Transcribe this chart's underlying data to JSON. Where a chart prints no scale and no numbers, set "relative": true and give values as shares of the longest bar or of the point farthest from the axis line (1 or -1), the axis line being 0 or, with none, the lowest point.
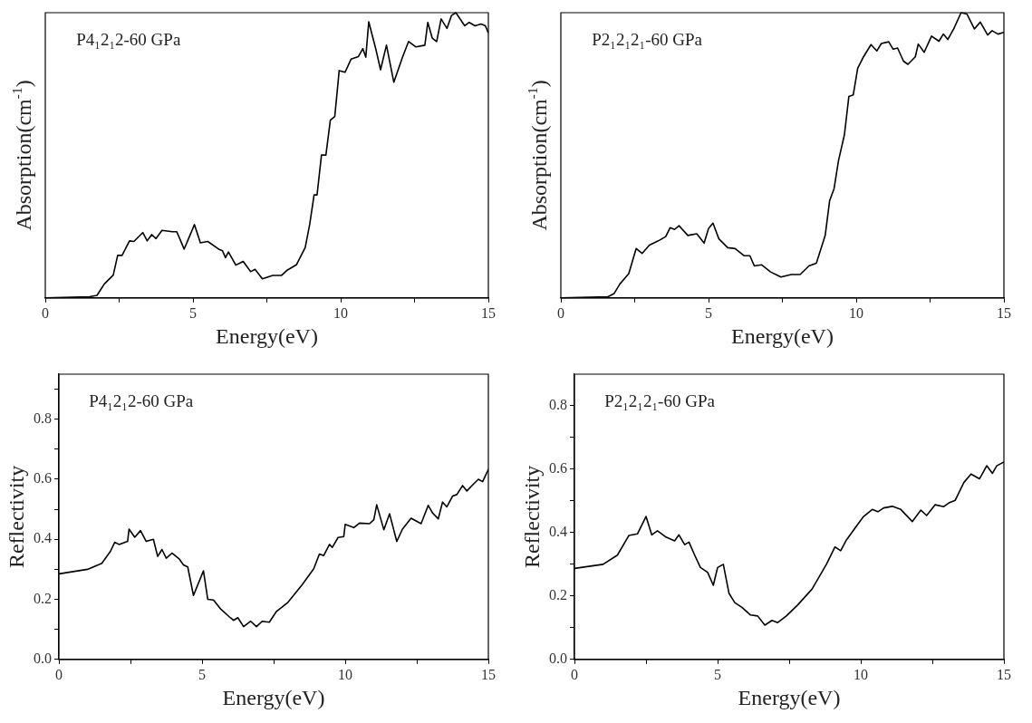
{
  "chart_data": [
    {
      "type": "line",
      "relative": true,
      "xlabel": "Energy(eV)",
      "ylabel": "Absorption(cm$^{-1}$)",
      "annotations": [
        "P4₁2₁2-60 GPa"
      ],
      "xlim": [
        0,
        15
      ],
      "xticks": [
        0,
        {
          "value": 2.5,
          "label": null
        },
        5,
        {
          "value": 7.5,
          "label": null
        },
        10,
        {
          "value": 12.5,
          "label": null
        },
        15
      ],
      "series": [
        {
          "color": "#000000",
          "x": [
            0,
            1.5,
            1.75,
            2.0,
            2.3,
            2.45,
            2.6,
            2.85,
            3.0,
            3.3,
            3.45,
            3.6,
            3.75,
            3.95,
            4.3,
            4.45,
            4.6,
            4.7,
            4.85,
            5.05,
            5.25,
            5.5,
            5.9,
            6.0,
            6.1,
            6.2,
            6.45,
            6.7,
            6.95,
            7.1,
            7.35,
            7.7,
            8.0,
            8.2,
            8.5,
            8.8,
            8.95,
            9.1,
            9.2,
            9.35,
            9.5,
            9.65,
            9.8,
            9.95,
            10.15,
            10.35,
            10.6,
            10.75,
            10.85,
            10.95,
            11.2,
            11.35,
            11.55,
            11.8,
            12.1,
            12.3,
            12.55,
            12.85,
            12.95,
            13.1,
            13.25,
            13.4,
            13.6,
            13.75,
            13.9,
            14.2,
            14.35,
            14.55,
            14.75,
            14.9,
            15
          ],
          "values": [
            0,
            0.004,
            0.009,
            0.049,
            0.08,
            0.149,
            0.149,
            0.2,
            0.198,
            0.229,
            0.2,
            0.222,
            0.208,
            0.237,
            0.232,
            0.232,
            0.196,
            0.171,
            0.208,
            0.257,
            0.193,
            0.198,
            0.169,
            0.165,
            0.141,
            0.161,
            0.115,
            0.128,
            0.092,
            0.1,
            0.067,
            0.079,
            0.079,
            0.098,
            0.116,
            0.177,
            0.257,
            0.361,
            0.361,
            0.501,
            0.501,
            0.623,
            0.636,
            0.797,
            0.791,
            0.837,
            0.846,
            0.874,
            0.844,
            0.968,
            0.868,
            0.8,
            0.886,
            0.756,
            0.846,
            0.899,
            0.88,
            0.886,
            0.966,
            0.911,
            0.899,
            0.978,
            0.945,
            0.99,
            1,
            0.954,
            0.966,
            0.954,
            0.96,
            0.954,
            0.929
          ]
        }
      ]
    },
    {
      "type": "line",
      "relative": true,
      "xlabel": "Energy(eV)",
      "ylabel": "Absorption(cm$^{-1}$)",
      "annotations": [
        "P2₁2₁2₁-60 GPa"
      ],
      "xlim": [
        0,
        15
      ],
      "xticks": [
        0,
        {
          "value": 2.5,
          "label": null
        },
        5,
        {
          "value": 7.5,
          "label": null
        },
        10,
        {
          "value": 12.5,
          "label": null
        },
        15
      ],
      "series": [
        {
          "color": "#000000",
          "x": [
            0,
            1.6,
            1.8,
            2.0,
            2.3,
            2.55,
            2.75,
            3.0,
            3.3,
            3.55,
            3.7,
            3.85,
            4.0,
            4.3,
            4.6,
            4.85,
            5.0,
            5.15,
            5.35,
            5.65,
            5.9,
            6.2,
            6.4,
            6.55,
            6.8,
            7.1,
            7.45,
            7.8,
            8.1,
            8.4,
            8.65,
            8.95,
            9.1,
            9.25,
            9.4,
            9.6,
            9.75,
            9.9,
            10.05,
            10.25,
            10.5,
            10.7,
            10.85,
            11.1,
            11.25,
            11.4,
            11.6,
            11.75,
            12.0,
            12.1,
            12.3,
            12.55,
            12.8,
            12.95,
            13.1,
            13.3,
            13.55,
            13.75,
            14.0,
            14.2,
            14.45,
            14.6,
            14.8,
            15
          ],
          "values": [
            0,
            0.004,
            0.015,
            0.049,
            0.085,
            0.173,
            0.156,
            0.185,
            0.2,
            0.215,
            0.246,
            0.24,
            0.253,
            0.219,
            0.225,
            0.192,
            0.243,
            0.262,
            0.207,
            0.176,
            0.173,
            0.148,
            0.148,
            0.112,
            0.116,
            0.091,
            0.073,
            0.082,
            0.082,
            0.112,
            0.122,
            0.219,
            0.341,
            0.383,
            0.481,
            0.572,
            0.706,
            0.712,
            0.805,
            0.846,
            0.888,
            0.866,
            0.892,
            0.898,
            0.872,
            0.876,
            0.83,
            0.819,
            0.845,
            0.89,
            0.861,
            0.918,
            0.9,
            0.925,
            0.906,
            0.943,
            1,
            0.995,
            0.943,
            0.967,
            0.922,
            0.937,
            0.925,
            0.931
          ]
        }
      ]
    },
    {
      "type": "line",
      "xlabel": "Energy(eV)",
      "ylabel": "Reflectivity",
      "annotations": [
        "P4₁2₁2-60 GPa"
      ],
      "xlim": [
        0,
        15
      ],
      "xticks": [
        0,
        {
          "value": 2.5,
          "label": null
        },
        5,
        {
          "value": 7.5,
          "label": null
        },
        10,
        {
          "value": 12.5,
          "label": null
        },
        15
      ],
      "ylim": [
        0,
        0.95
      ],
      "yticks": [
        {
          "value": 0,
          "label": "0.0"
        },
        {
          "value": 0.1,
          "label": null
        },
        0.2,
        {
          "value": 0.3,
          "label": null
        },
        0.4,
        {
          "value": 0.5,
          "label": null
        },
        0.6,
        {
          "value": 0.7,
          "label": null
        },
        0.8,
        {
          "value": 0.9,
          "label": null
        }
      ],
      "series": [
        {
          "color": "#000000",
          "x": [
            0,
            1.0,
            1.5,
            1.8,
            1.95,
            2.1,
            2.4,
            2.45,
            2.65,
            2.85,
            3.05,
            3.3,
            3.45,
            3.6,
            3.75,
            3.95,
            4.2,
            4.35,
            4.5,
            4.7,
            4.9,
            5.05,
            5.2,
            5.4,
            5.65,
            5.95,
            6.1,
            6.25,
            6.45,
            6.7,
            6.9,
            7.1,
            7.35,
            7.6,
            8.0,
            8.5,
            8.9,
            9.1,
            9.25,
            9.45,
            9.55,
            9.75,
            9.95,
            10.0,
            10.3,
            10.5,
            10.85,
            11.0,
            11.1,
            11.35,
            11.55,
            11.8,
            12.0,
            12.3,
            12.65,
            12.9,
            13.05,
            13.25,
            13.4,
            13.55,
            13.75,
            13.9,
            14.1,
            14.25,
            14.45,
            14.65,
            14.8,
            15
          ],
          "values": [
            0.285,
            0.3,
            0.32,
            0.36,
            0.39,
            0.383,
            0.393,
            0.434,
            0.407,
            0.429,
            0.393,
            0.4,
            0.343,
            0.366,
            0.337,
            0.354,
            0.335,
            0.315,
            0.308,
            0.213,
            0.26,
            0.295,
            0.2,
            0.198,
            0.168,
            0.142,
            0.13,
            0.139,
            0.109,
            0.127,
            0.109,
            0.127,
            0.124,
            0.16,
            0.19,
            0.249,
            0.302,
            0.351,
            0.346,
            0.383,
            0.373,
            0.406,
            0.409,
            0.45,
            0.439,
            0.454,
            0.452,
            0.465,
            0.515,
            0.432,
            0.485,
            0.393,
            0.434,
            0.47,
            0.452,
            0.513,
            0.488,
            0.468,
            0.524,
            0.508,
            0.544,
            0.549,
            0.579,
            0.561,
            0.581,
            0.6,
            0.592,
            0.633
          ]
        }
      ]
    },
    {
      "type": "line",
      "xlabel": "Energy(eV)",
      "ylabel": "Reflectivity",
      "annotations": [
        "P2₁2₁2₁-60 GPa"
      ],
      "xlim": [
        0,
        15
      ],
      "xticks": [
        0,
        {
          "value": 2.5,
          "label": null
        },
        5,
        {
          "value": 7.5,
          "label": null
        },
        10,
        {
          "value": 12.5,
          "label": null
        },
        15
      ],
      "ylim": [
        0,
        0.9
      ],
      "yticks": [
        {
          "value": 0,
          "label": "0.0"
        },
        {
          "value": 0.1,
          "label": null
        },
        0.2,
        {
          "value": 0.3,
          "label": null
        },
        0.4,
        {
          "value": 0.5,
          "label": null
        },
        0.6,
        {
          "value": 0.7,
          "label": null
        },
        0.8
      ],
      "series": [
        {
          "color": "#000000",
          "x": [
            0,
            1.0,
            1.5,
            1.9,
            2.2,
            2.5,
            2.7,
            2.9,
            3.2,
            3.5,
            3.65,
            3.85,
            4.0,
            4.2,
            4.4,
            4.65,
            4.85,
            5.0,
            5.2,
            5.4,
            5.6,
            5.85,
            6.15,
            6.4,
            6.65,
            6.9,
            7.1,
            7.4,
            7.8,
            8.3,
            8.8,
            9.1,
            9.3,
            9.5,
            9.9,
            10.1,
            10.4,
            10.6,
            10.8,
            11.1,
            11.4,
            11.8,
            12.1,
            12.3,
            12.6,
            12.9,
            13.1,
            13.3,
            13.6,
            13.85,
            14.15,
            14.4,
            14.6,
            14.75,
            15
          ],
          "values": [
            0.287,
            0.3,
            0.329,
            0.391,
            0.396,
            0.451,
            0.393,
            0.406,
            0.386,
            0.374,
            0.393,
            0.362,
            0.37,
            0.329,
            0.29,
            0.275,
            0.234,
            0.29,
            0.3,
            0.208,
            0.179,
            0.164,
            0.14,
            0.137,
            0.108,
            0.123,
            0.116,
            0.137,
            0.172,
            0.222,
            0.3,
            0.355,
            0.343,
            0.377,
            0.427,
            0.451,
            0.473,
            0.466,
            0.478,
            0.483,
            0.473,
            0.435,
            0.471,
            0.454,
            0.488,
            0.482,
            0.495,
            0.502,
            0.558,
            0.585,
            0.57,
            0.611,
            0.587,
            0.611,
            0.623
          ]
        }
      ]
    }
  ]
}
